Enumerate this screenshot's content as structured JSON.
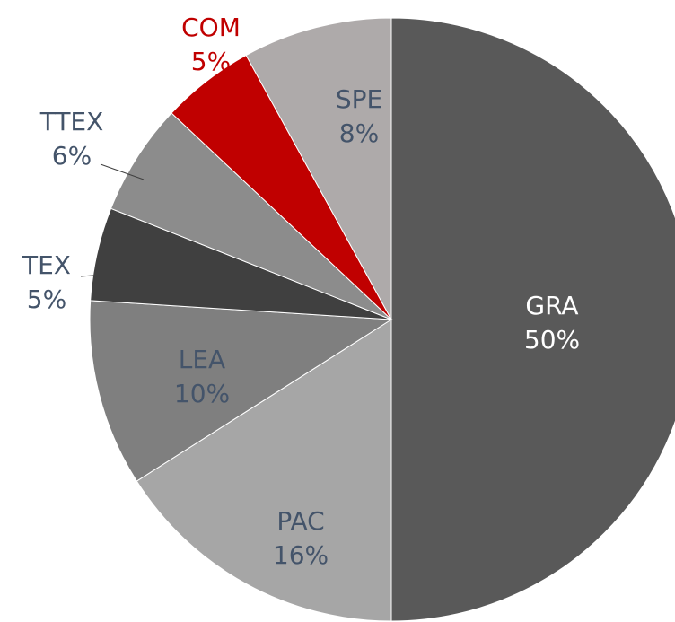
{
  "chart_data": {
    "type": "pie",
    "categories": [
      "GRA",
      "PAC",
      "LEA",
      "TEX",
      "TTEX",
      "COM",
      "SPE"
    ],
    "values": [
      50,
      16,
      10,
      5,
      6,
      5,
      8
    ],
    "value_labels": [
      "50%",
      "16%",
      "10%",
      "5%",
      "6%",
      "5%",
      "8%"
    ],
    "colors": [
      "#595959",
      "#a6a6a6",
      "#7f7f7f",
      "#404040",
      "#8c8c8c",
      "#c00000",
      "#aeaaaa"
    ],
    "label_colors": [
      "#ffffff",
      "#44546a",
      "#44546a",
      "#44546a",
      "#44546a",
      "#c00000",
      "#44546a"
    ]
  }
}
